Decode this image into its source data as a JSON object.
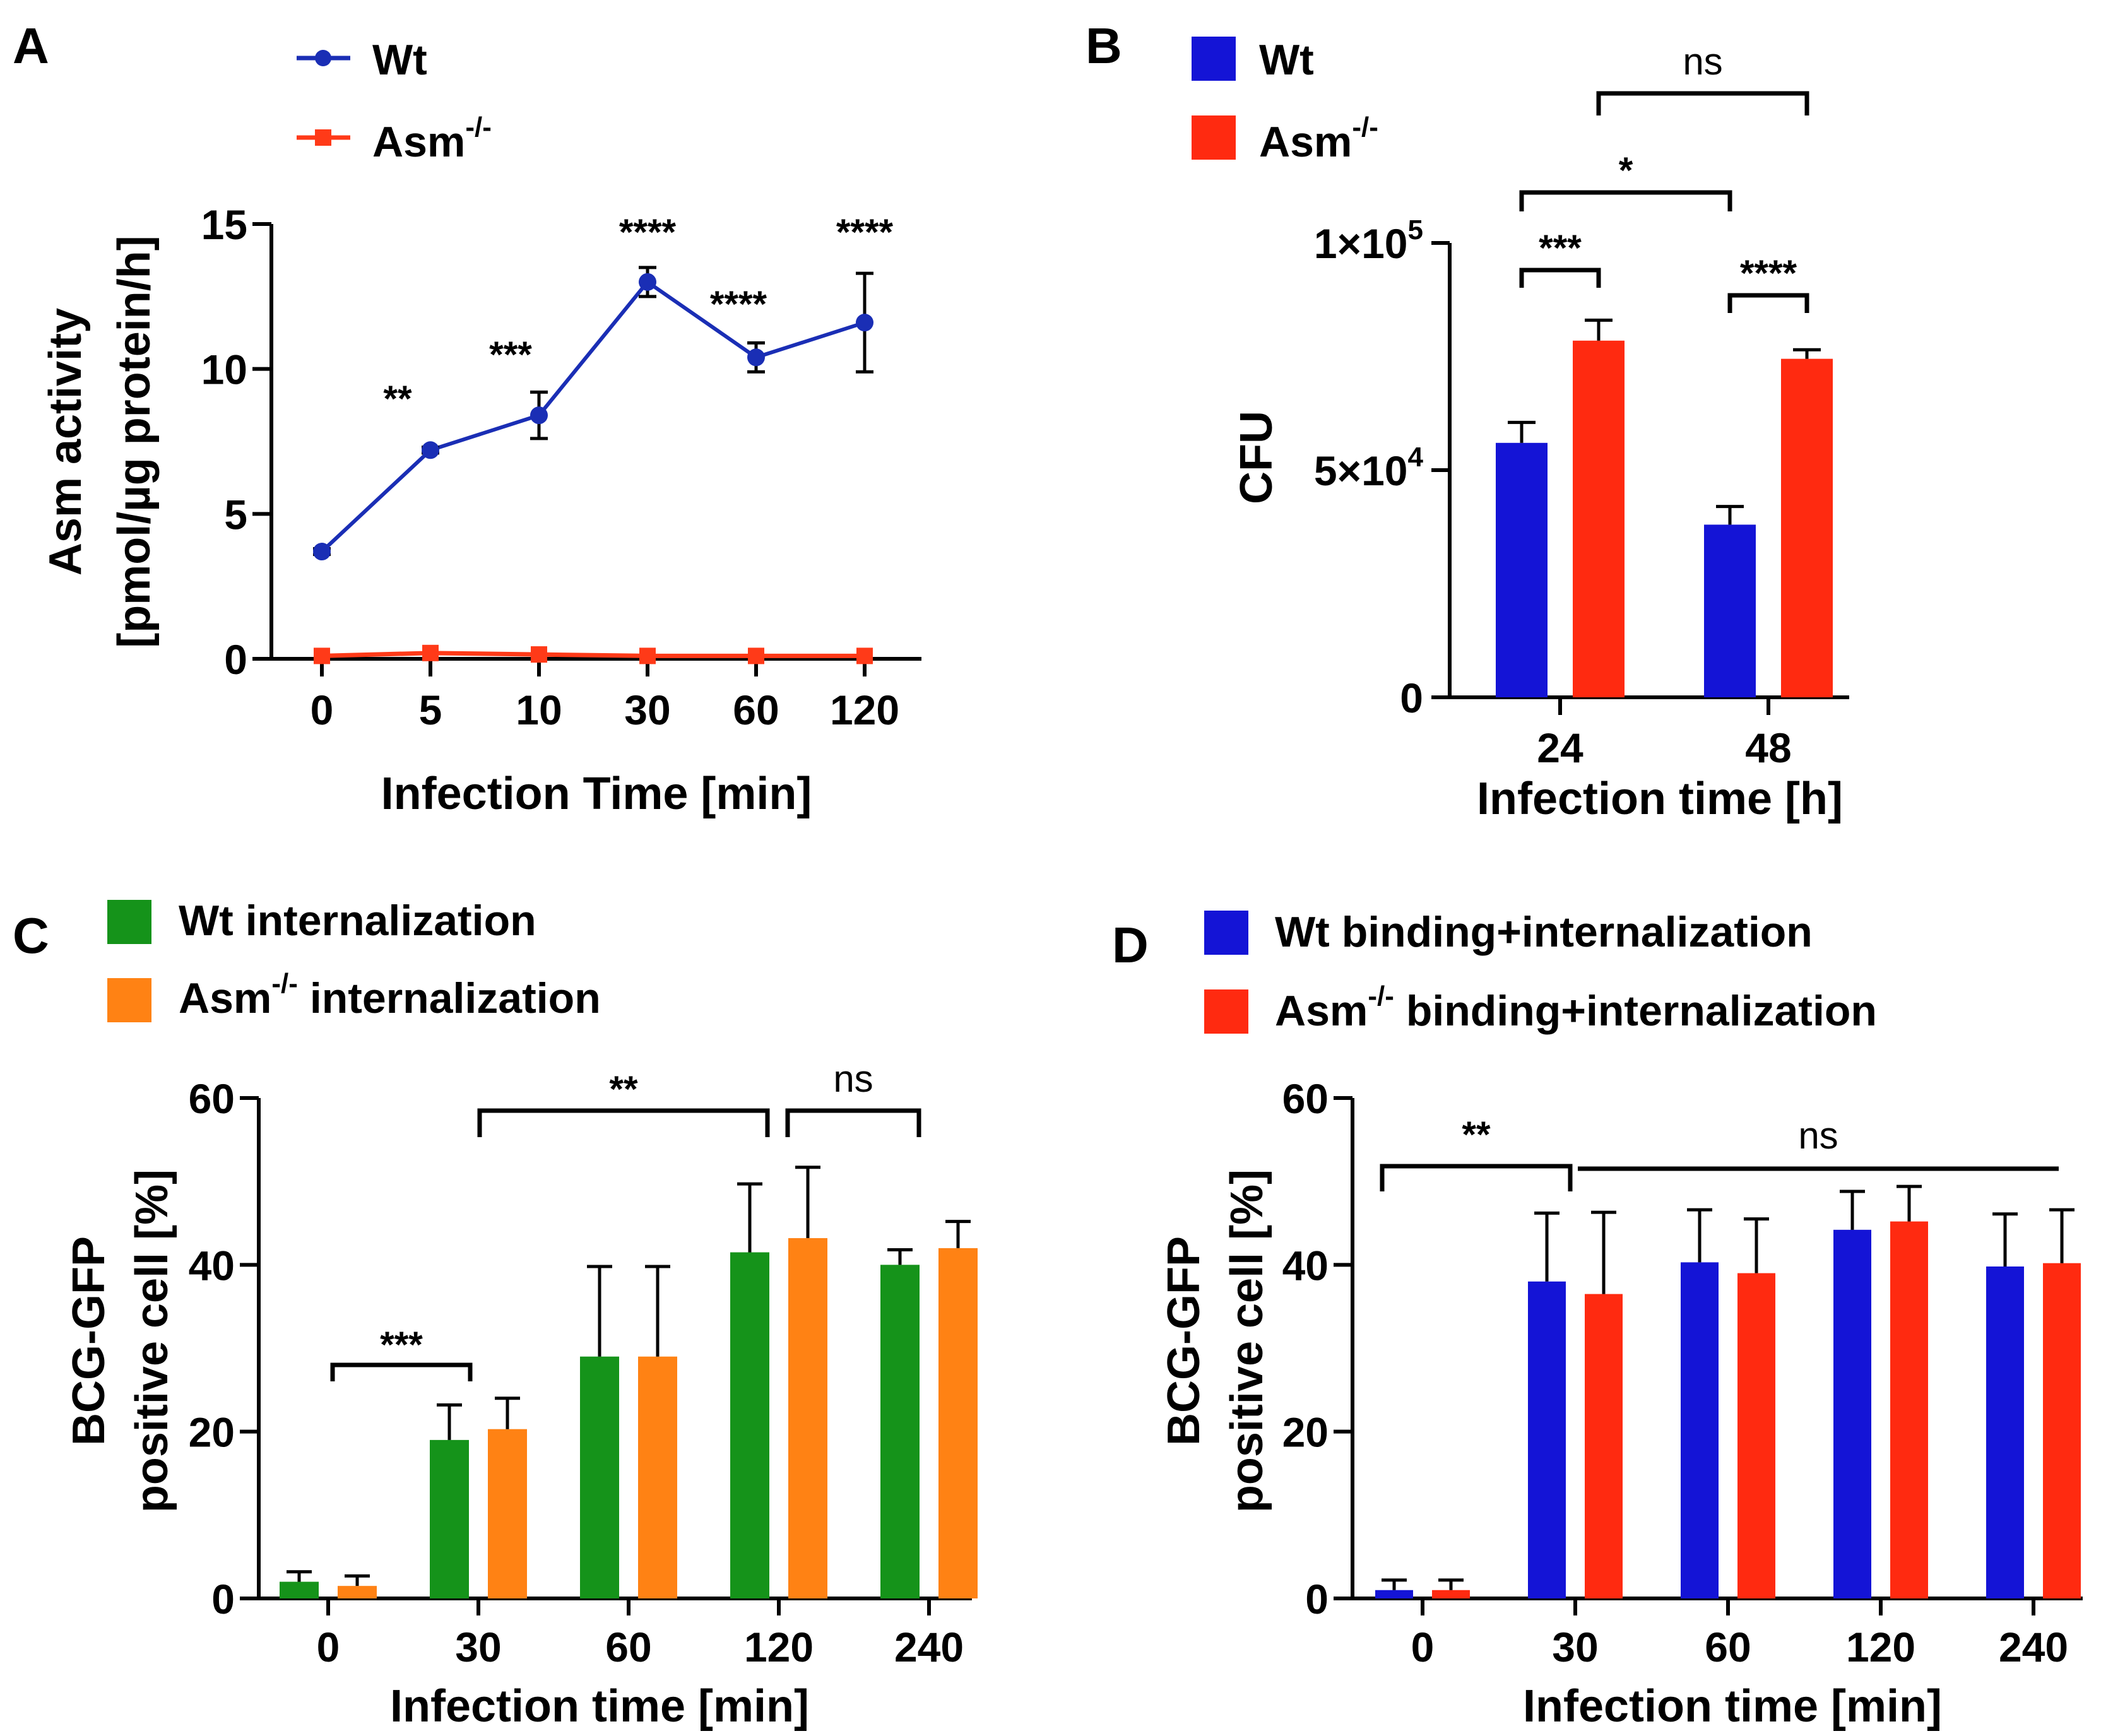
{
  "chart_data": [
    {
      "panel": "A",
      "type": "line",
      "categories": [
        "0",
        "5",
        "10",
        "30",
        "60",
        "120"
      ],
      "series": [
        {
          "name": "Wt",
          "color": "#1a2eb5",
          "values": [
            3.7,
            7.2,
            8.4,
            13.0,
            10.4,
            11.6
          ],
          "errors": [
            0.1,
            0.1,
            0.8,
            0.5,
            0.5,
            1.7
          ]
        },
        {
          "name": "Asm",
          "sup": "-/-",
          "color": "#ff3a18",
          "values": [
            0.1,
            0.2,
            0.15,
            0.1,
            0.1,
            0.1
          ],
          "errors": [
            0.05,
            0.1,
            0.05,
            0.05,
            0.05,
            0.05
          ]
        }
      ],
      "significance": [
        "",
        "**",
        "***",
        "****",
        "****",
        "****"
      ],
      "ylabel": [
        "Asm activity",
        "[pmol/µg protein/h]"
      ],
      "xlabel": "Infection Time [min]",
      "ylim": [
        0,
        15
      ],
      "yticks": [
        "0",
        "5",
        "10",
        "15"
      ],
      "ytick_values": [
        0,
        5,
        10,
        15
      ]
    },
    {
      "panel": "B",
      "type": "bar",
      "categories": [
        "24",
        "48"
      ],
      "series": [
        {
          "name": "Wt",
          "color": "#1414d6",
          "values": [
            56000,
            38000
          ],
          "errors": [
            4500,
            4000
          ]
        },
        {
          "name": "Asm",
          "sup": "-/-",
          "color": "#ff2a10",
          "values": [
            78500,
            74500
          ],
          "errors": [
            4500,
            2000
          ]
        }
      ],
      "ylabel": "CFU",
      "xlabel": "Infection time [h]",
      "ylim": [
        0,
        100000
      ],
      "yticks": [
        {
          "value": 0,
          "label": "0",
          "sup": ""
        },
        {
          "value": 50000,
          "label": "5×10",
          "sup": "4"
        },
        {
          "value": 100000,
          "label": "1×10",
          "sup": "5"
        }
      ],
      "brackets": [
        {
          "label": "***",
          "from": "Wt 24",
          "to": "Asm 24"
        },
        {
          "label": "****",
          "from": "Wt 48",
          "to": "Asm 48"
        },
        {
          "label": "*",
          "from": "Wt 24",
          "to": "Wt 48"
        },
        {
          "label": "ns",
          "from": "Asm 24",
          "to": "Asm 48"
        }
      ]
    },
    {
      "panel": "C",
      "type": "bar",
      "categories": [
        "0",
        "30",
        "60",
        "120",
        "240"
      ],
      "series": [
        {
          "name": "Wt internalization",
          "color": "#15931a",
          "values": [
            2,
            19,
            29,
            41.5,
            40
          ],
          "errors": [
            1.2,
            4.2,
            10.8,
            8.2,
            1.8
          ]
        },
        {
          "name": "Asm internalization",
          "sup": "-/-",
          "sup_after": "Asm",
          "color": "#ff8214",
          "values": [
            1.5,
            20.3,
            29,
            43.2,
            42
          ],
          "errors": [
            1.2,
            3.7,
            10.8,
            8.5,
            3.2
          ]
        }
      ],
      "ylabel": [
        "BCG-GFP",
        "positive cell [%]"
      ],
      "xlabel": "Infection time [min]",
      "ylim": [
        0,
        60
      ],
      "yticks": [
        "0",
        "20",
        "40",
        "60"
      ],
      "ytick_values": [
        0,
        20,
        40,
        60
      ],
      "brackets": [
        {
          "label": "***",
          "from": "0",
          "to": "30"
        },
        {
          "label": "**",
          "from": "30",
          "to": "120"
        },
        {
          "label": "ns",
          "from": "120",
          "to": "240"
        }
      ]
    },
    {
      "panel": "D",
      "type": "bar",
      "categories": [
        "0",
        "30",
        "60",
        "120",
        "240"
      ],
      "series": [
        {
          "name": "Wt binding+internalization",
          "color": "#1414d6",
          "values": [
            1,
            38,
            40.3,
            44.2,
            39.8
          ],
          "errors": [
            1.2,
            8.2,
            6.3,
            4.6,
            6.3
          ]
        },
        {
          "name": "Asm binding+internalization",
          "sup": "-/-",
          "sup_after": "Asm",
          "color": "#ff2a10",
          "values": [
            1,
            36.5,
            39,
            45.2,
            40.2
          ],
          "errors": [
            1.2,
            9.8,
            6.5,
            4.2,
            6.4
          ]
        }
      ],
      "ylabel": [
        "BCG-GFP",
        "positive cell [%]"
      ],
      "xlabel": "Infection time [min]",
      "ylim": [
        0,
        60
      ],
      "yticks": [
        "0",
        "20",
        "40",
        "60"
      ],
      "ytick_values": [
        0,
        20,
        40,
        60
      ],
      "brackets": [
        {
          "label": "**",
          "from": "0",
          "to": "30"
        },
        {
          "label": "ns",
          "from": "30",
          "to": "240"
        }
      ]
    }
  ]
}
